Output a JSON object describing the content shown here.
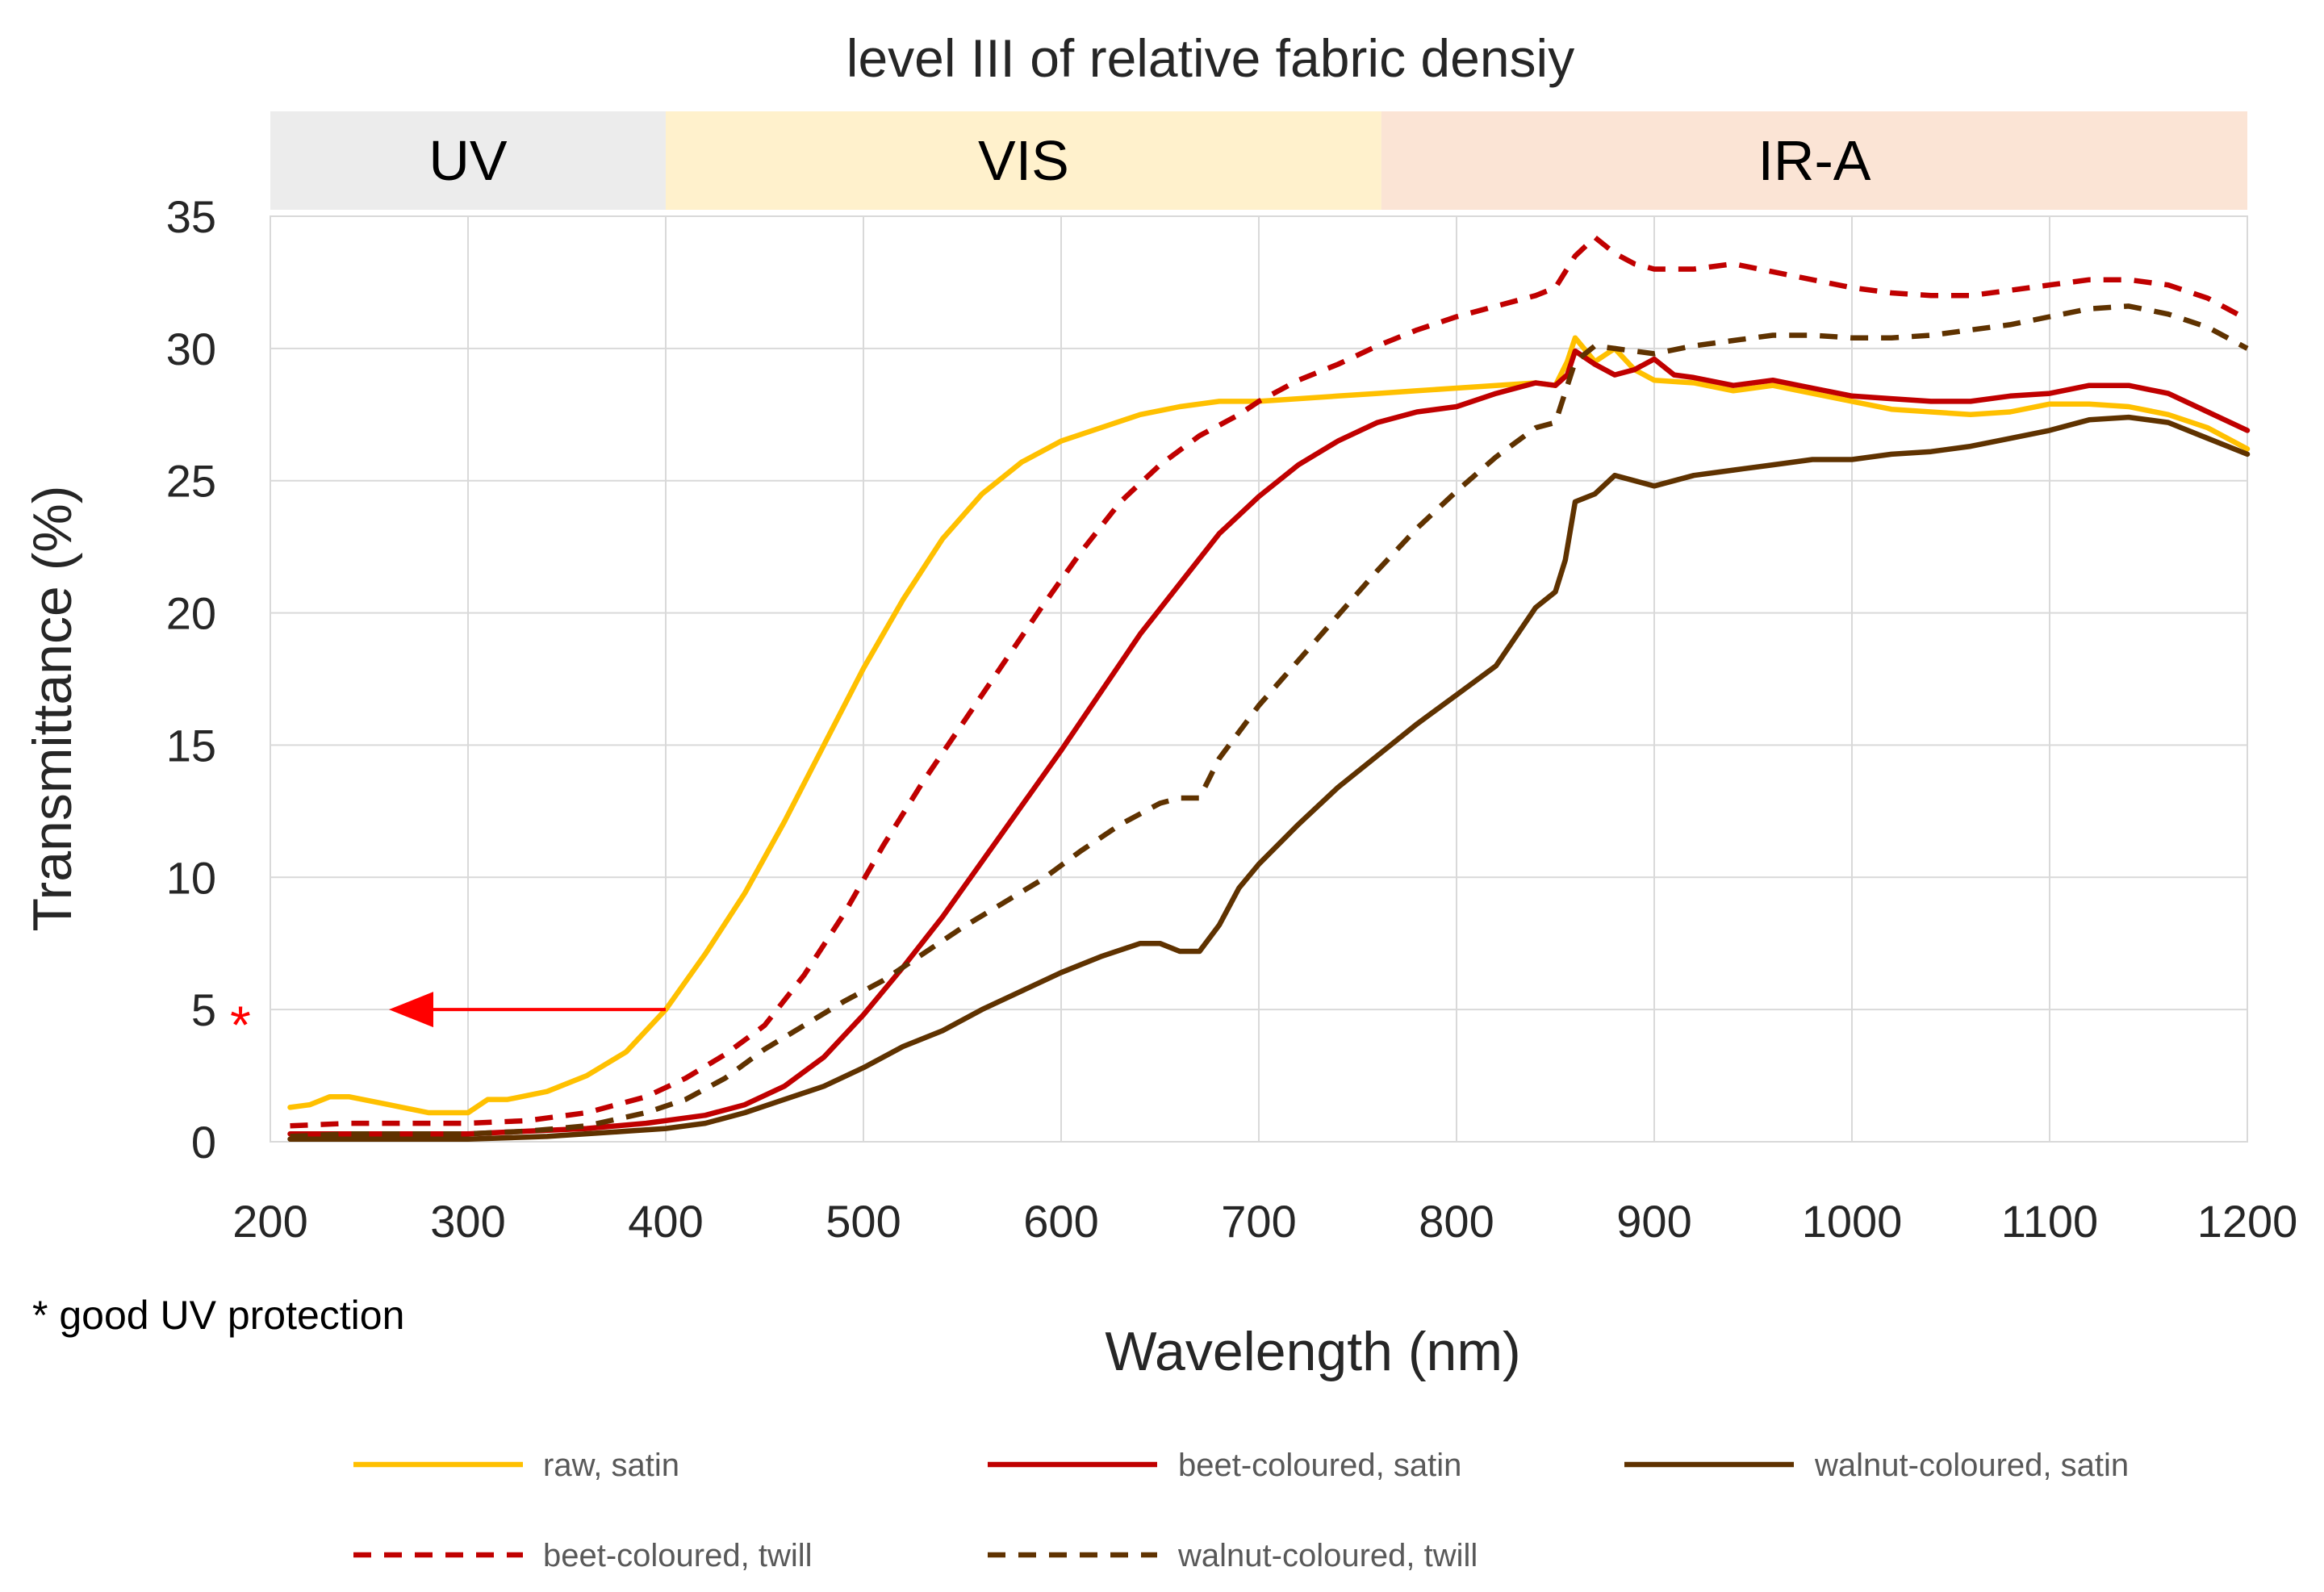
{
  "chart_data": {
    "type": "line",
    "title": "level III of relative fabric densiy",
    "xlabel": "Wavelength (nm)",
    "ylabel": "Transmittance (%)",
    "xlim": [
      200,
      1200
    ],
    "ylim": [
      0,
      35
    ],
    "x_ticks": [
      "200",
      "300",
      "400",
      "500",
      "600",
      "700",
      "800",
      "900",
      "1000",
      "1100",
      "1200"
    ],
    "y_ticks": [
      "0",
      "5",
      "10",
      "15",
      "20",
      "25",
      "30",
      "35"
    ],
    "grid": true,
    "legend_position": "bottom",
    "bands": [
      {
        "label": "UV",
        "from": 200,
        "to": 400,
        "color": "#ececec"
      },
      {
        "label": "VIS",
        "from": 400,
        "to": 762,
        "color": "#fff1cc"
      },
      {
        "label": "IR-A",
        "from": 762,
        "to": 1200,
        "color": "#fbe4d5"
      }
    ],
    "annotation": {
      "marker": "*",
      "y": 5,
      "x_from": 400,
      "x_to": 260,
      "color": "#ff0000"
    },
    "footnote": "* good UV protection",
    "series": [
      {
        "name": "raw, satin",
        "color": "#ffc000",
        "dash": "solid",
        "points": [
          [
            210,
            1.3
          ],
          [
            220,
            1.4
          ],
          [
            230,
            1.7
          ],
          [
            240,
            1.7
          ],
          [
            260,
            1.4
          ],
          [
            280,
            1.1
          ],
          [
            300,
            1.1
          ],
          [
            310,
            1.6
          ],
          [
            320,
            1.6
          ],
          [
            340,
            1.9
          ],
          [
            360,
            2.5
          ],
          [
            380,
            3.4
          ],
          [
            400,
            5
          ],
          [
            420,
            7.1
          ],
          [
            440,
            9.4
          ],
          [
            460,
            12.1
          ],
          [
            480,
            15
          ],
          [
            500,
            17.9
          ],
          [
            520,
            20.5
          ],
          [
            540,
            22.8
          ],
          [
            560,
            24.5
          ],
          [
            580,
            25.7
          ],
          [
            600,
            26.5
          ],
          [
            620,
            27
          ],
          [
            640,
            27.5
          ],
          [
            660,
            27.8
          ],
          [
            680,
            28
          ],
          [
            700,
            28
          ],
          [
            720,
            28.1
          ],
          [
            740,
            28.2
          ],
          [
            760,
            28.3
          ],
          [
            780,
            28.4
          ],
          [
            800,
            28.5
          ],
          [
            820,
            28.6
          ],
          [
            840,
            28.7
          ],
          [
            850,
            28.6
          ],
          [
            856,
            29.5
          ],
          [
            860,
            30.4
          ],
          [
            870,
            29.5
          ],
          [
            880,
            30
          ],
          [
            890,
            29.2
          ],
          [
            900,
            28.8
          ],
          [
            920,
            28.7
          ],
          [
            940,
            28.4
          ],
          [
            960,
            28.6
          ],
          [
            980,
            28.3
          ],
          [
            1000,
            28
          ],
          [
            1020,
            27.7
          ],
          [
            1040,
            27.6
          ],
          [
            1060,
            27.5
          ],
          [
            1080,
            27.6
          ],
          [
            1100,
            27.9
          ],
          [
            1120,
            27.9
          ],
          [
            1140,
            27.8
          ],
          [
            1160,
            27.5
          ],
          [
            1180,
            27
          ],
          [
            1200,
            26.2
          ]
        ]
      },
      {
        "name": "beet-coloured, satin",
        "color": "#c00000",
        "dash": "solid",
        "points": [
          [
            210,
            0.3
          ],
          [
            240,
            0.3
          ],
          [
            270,
            0.3
          ],
          [
            300,
            0.3
          ],
          [
            330,
            0.4
          ],
          [
            360,
            0.5
          ],
          [
            390,
            0.7
          ],
          [
            420,
            1
          ],
          [
            440,
            1.4
          ],
          [
            460,
            2.1
          ],
          [
            480,
            3.2
          ],
          [
            500,
            4.8
          ],
          [
            520,
            6.6
          ],
          [
            540,
            8.5
          ],
          [
            560,
            10.6
          ],
          [
            580,
            12.7
          ],
          [
            600,
            14.8
          ],
          [
            620,
            17
          ],
          [
            640,
            19.2
          ],
          [
            660,
            21.1
          ],
          [
            680,
            23
          ],
          [
            700,
            24.4
          ],
          [
            720,
            25.6
          ],
          [
            740,
            26.5
          ],
          [
            760,
            27.2
          ],
          [
            780,
            27.6
          ],
          [
            800,
            27.8
          ],
          [
            820,
            28.3
          ],
          [
            840,
            28.7
          ],
          [
            850,
            28.6
          ],
          [
            856,
            29
          ],
          [
            860,
            29.9
          ],
          [
            870,
            29.4
          ],
          [
            880,
            29
          ],
          [
            890,
            29.2
          ],
          [
            900,
            29.6
          ],
          [
            910,
            29
          ],
          [
            920,
            28.9
          ],
          [
            940,
            28.6
          ],
          [
            960,
            28.8
          ],
          [
            980,
            28.5
          ],
          [
            1000,
            28.2
          ],
          [
            1020,
            28.1
          ],
          [
            1040,
            28
          ],
          [
            1060,
            28
          ],
          [
            1080,
            28.2
          ],
          [
            1100,
            28.3
          ],
          [
            1120,
            28.6
          ],
          [
            1140,
            28.6
          ],
          [
            1160,
            28.3
          ],
          [
            1180,
            27.6
          ],
          [
            1200,
            26.9
          ]
        ]
      },
      {
        "name": "walnut-coloured, satin",
        "color": "#5f3200",
        "dash": "solid",
        "points": [
          [
            210,
            0.1
          ],
          [
            250,
            0.1
          ],
          [
            300,
            0.1
          ],
          [
            340,
            0.2
          ],
          [
            380,
            0.4
          ],
          [
            400,
            0.5
          ],
          [
            420,
            0.7
          ],
          [
            440,
            1.1
          ],
          [
            460,
            1.6
          ],
          [
            480,
            2.1
          ],
          [
            500,
            2.8
          ],
          [
            520,
            3.6
          ],
          [
            540,
            4.2
          ],
          [
            560,
            5
          ],
          [
            580,
            5.7
          ],
          [
            600,
            6.4
          ],
          [
            620,
            7
          ],
          [
            640,
            7.5
          ],
          [
            650,
            7.5
          ],
          [
            660,
            7.2
          ],
          [
            670,
            7.2
          ],
          [
            680,
            8.2
          ],
          [
            690,
            9.6
          ],
          [
            700,
            10.5
          ],
          [
            720,
            12
          ],
          [
            740,
            13.4
          ],
          [
            760,
            14.6
          ],
          [
            780,
            15.8
          ],
          [
            800,
            16.9
          ],
          [
            820,
            18
          ],
          [
            840,
            20.2
          ],
          [
            850,
            20.8
          ],
          [
            855,
            22
          ],
          [
            860,
            24.2
          ],
          [
            870,
            24.5
          ],
          [
            880,
            25.2
          ],
          [
            900,
            24.8
          ],
          [
            920,
            25.2
          ],
          [
            940,
            25.4
          ],
          [
            960,
            25.6
          ],
          [
            980,
            25.8
          ],
          [
            1000,
            25.8
          ],
          [
            1020,
            26
          ],
          [
            1040,
            26.1
          ],
          [
            1060,
            26.3
          ],
          [
            1080,
            26.6
          ],
          [
            1100,
            26.9
          ],
          [
            1120,
            27.3
          ],
          [
            1140,
            27.4
          ],
          [
            1160,
            27.2
          ],
          [
            1180,
            26.6
          ],
          [
            1200,
            26
          ]
        ]
      },
      {
        "name": "beet-coloured, twill",
        "color": "#c00000",
        "dash": "dashed",
        "points": [
          [
            210,
            0.6
          ],
          [
            240,
            0.7
          ],
          [
            270,
            0.7
          ],
          [
            300,
            0.7
          ],
          [
            330,
            0.8
          ],
          [
            360,
            1.1
          ],
          [
            390,
            1.7
          ],
          [
            410,
            2.4
          ],
          [
            430,
            3.3
          ],
          [
            450,
            4.4
          ],
          [
            470,
            6.3
          ],
          [
            490,
            8.6
          ],
          [
            510,
            11.2
          ],
          [
            530,
            13.6
          ],
          [
            550,
            15.8
          ],
          [
            570,
            18
          ],
          [
            590,
            20.2
          ],
          [
            610,
            22.3
          ],
          [
            630,
            24.2
          ],
          [
            650,
            25.6
          ],
          [
            670,
            26.7
          ],
          [
            690,
            27.5
          ],
          [
            700,
            28
          ],
          [
            720,
            28.8
          ],
          [
            740,
            29.4
          ],
          [
            760,
            30.1
          ],
          [
            780,
            30.7
          ],
          [
            800,
            31.2
          ],
          [
            820,
            31.6
          ],
          [
            840,
            32
          ],
          [
            850,
            32.3
          ],
          [
            860,
            33.5
          ],
          [
            870,
            34.2
          ],
          [
            880,
            33.6
          ],
          [
            890,
            33.2
          ],
          [
            900,
            33
          ],
          [
            920,
            33
          ],
          [
            940,
            33.2
          ],
          [
            960,
            32.9
          ],
          [
            980,
            32.6
          ],
          [
            1000,
            32.3
          ],
          [
            1020,
            32.1
          ],
          [
            1040,
            32
          ],
          [
            1060,
            32
          ],
          [
            1080,
            32.2
          ],
          [
            1100,
            32.4
          ],
          [
            1120,
            32.6
          ],
          [
            1140,
            32.6
          ],
          [
            1160,
            32.4
          ],
          [
            1180,
            31.9
          ],
          [
            1200,
            31.1
          ]
        ]
      },
      {
        "name": "walnut-coloured, twill",
        "color": "#5f3200",
        "dash": "dashed",
        "points": [
          [
            210,
            0.2
          ],
          [
            240,
            0.3
          ],
          [
            270,
            0.3
          ],
          [
            300,
            0.3
          ],
          [
            330,
            0.4
          ],
          [
            360,
            0.6
          ],
          [
            390,
            1.1
          ],
          [
            410,
            1.6
          ],
          [
            430,
            2.4
          ],
          [
            450,
            3.5
          ],
          [
            470,
            4.4
          ],
          [
            490,
            5.3
          ],
          [
            510,
            6.1
          ],
          [
            530,
            7.1
          ],
          [
            550,
            8.1
          ],
          [
            570,
            9
          ],
          [
            590,
            9.9
          ],
          [
            610,
            11
          ],
          [
            630,
            12
          ],
          [
            650,
            12.8
          ],
          [
            660,
            13
          ],
          [
            670,
            13
          ],
          [
            680,
            14.5
          ],
          [
            700,
            16.5
          ],
          [
            720,
            18.2
          ],
          [
            740,
            19.9
          ],
          [
            760,
            21.6
          ],
          [
            780,
            23.2
          ],
          [
            800,
            24.6
          ],
          [
            820,
            25.9
          ],
          [
            840,
            27
          ],
          [
            850,
            27.2
          ],
          [
            860,
            29.5
          ],
          [
            870,
            30.1
          ],
          [
            880,
            30
          ],
          [
            900,
            29.8
          ],
          [
            920,
            30.1
          ],
          [
            940,
            30.3
          ],
          [
            960,
            30.5
          ],
          [
            980,
            30.5
          ],
          [
            1000,
            30.4
          ],
          [
            1020,
            30.4
          ],
          [
            1040,
            30.5
          ],
          [
            1060,
            30.7
          ],
          [
            1080,
            30.9
          ],
          [
            1100,
            31.2
          ],
          [
            1120,
            31.5
          ],
          [
            1140,
            31.6
          ],
          [
            1160,
            31.3
          ],
          [
            1180,
            30.8
          ],
          [
            1200,
            30
          ]
        ]
      }
    ]
  }
}
